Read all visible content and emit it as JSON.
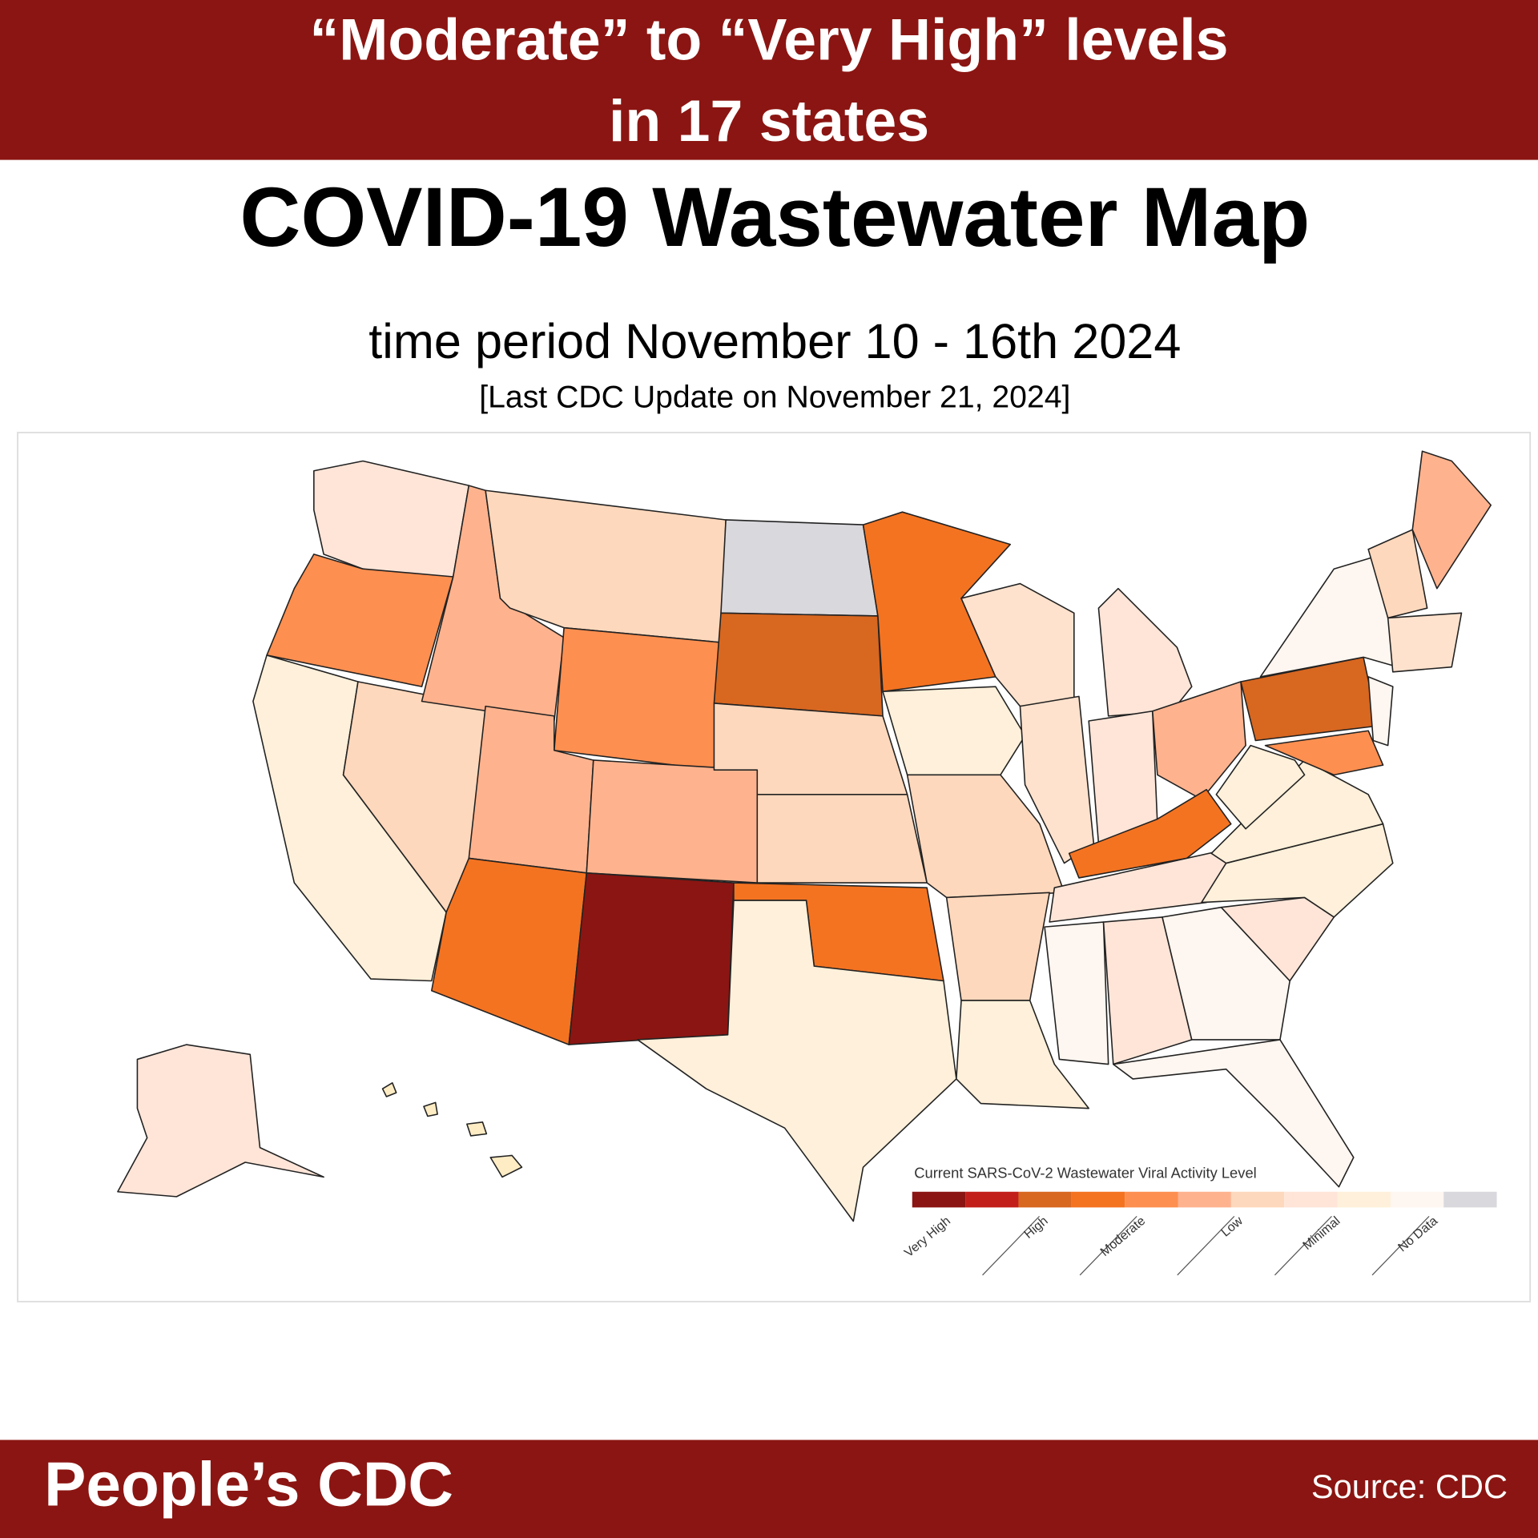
{
  "header": {
    "title_lines": [
      "“Moderate” to “Very High” levels",
      "in 17 states"
    ]
  },
  "title": "COVID-19 Wastewater Map",
  "subtitle": "time period November 10 - 16th 2024",
  "update_note": "[Last CDC Update on November 21, 2024]",
  "legend": {
    "title": "Current SARS-CoV-2 Wastewater Viral Activity Level",
    "colors": [
      "#8b1512",
      "#c31f1a",
      "#d86720",
      "#f47321",
      "#fd8f50",
      "#feb38e",
      "#fed8bc",
      "#fee5d8",
      "#fef0da",
      "#fef6f0",
      "#d9d8dd"
    ],
    "labels": [
      "Very High",
      "High",
      "Moderate",
      "Low",
      "Minimal",
      "No Data"
    ]
  },
  "footer": {
    "brand": "People’s CDC",
    "source": "Source: CDC"
  }
}
